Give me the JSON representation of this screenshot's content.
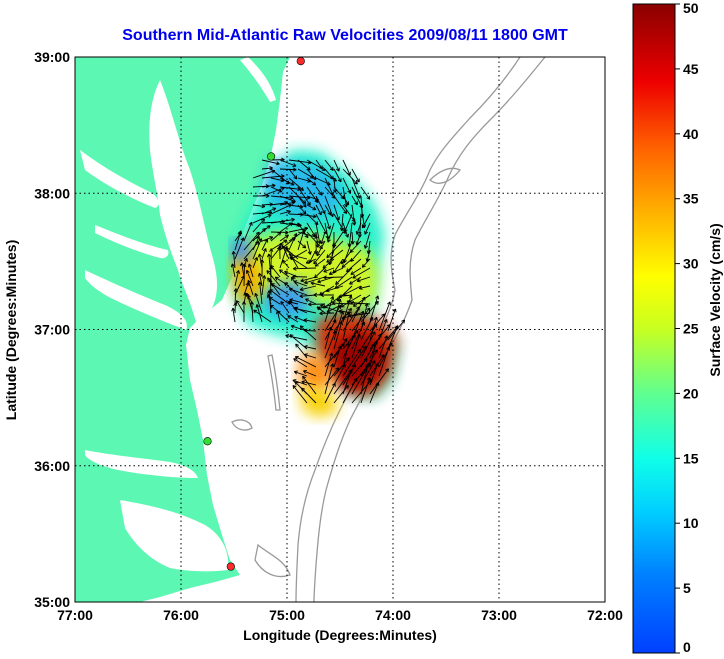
{
  "title": "Southern Mid-Atlantic Raw Velocities 2009/08/11 1800 GMT",
  "x_axis": {
    "label": "Longitude (Degrees:Minutes)",
    "ticks": [
      "77:00",
      "76:00",
      "75:00",
      "74:00",
      "73:00",
      "72:00"
    ]
  },
  "y_axis": {
    "label": "Latitude (Degrees:Minutes)",
    "ticks": [
      "39:00",
      "38:00",
      "37:00",
      "36:00",
      "35:00"
    ]
  },
  "colorbar": {
    "label": "Surface Velocity (cm/s)",
    "ticks": [
      "50",
      "45",
      "40",
      "35",
      "30",
      "25",
      "20",
      "15",
      "10",
      "5",
      "0"
    ],
    "range": [
      0,
      50
    ],
    "colormap": "jet"
  },
  "map": {
    "lon_range": [
      -77,
      -72
    ],
    "lat_range": [
      35,
      39
    ],
    "grid": "dotted",
    "land_color": "#5cf7b3",
    "contour_color": "#9a9a9a"
  },
  "stations": [
    {
      "lat": 38.97,
      "lon": -74.87,
      "color": "#ff2a2a"
    },
    {
      "lat": 38.27,
      "lon": -75.15,
      "color": "#33dd33"
    },
    {
      "lat": 36.18,
      "lon": -75.75,
      "color": "#33dd33"
    },
    {
      "lat": 35.26,
      "lon": -75.53,
      "color": "#ff2a2a"
    }
  ]
}
